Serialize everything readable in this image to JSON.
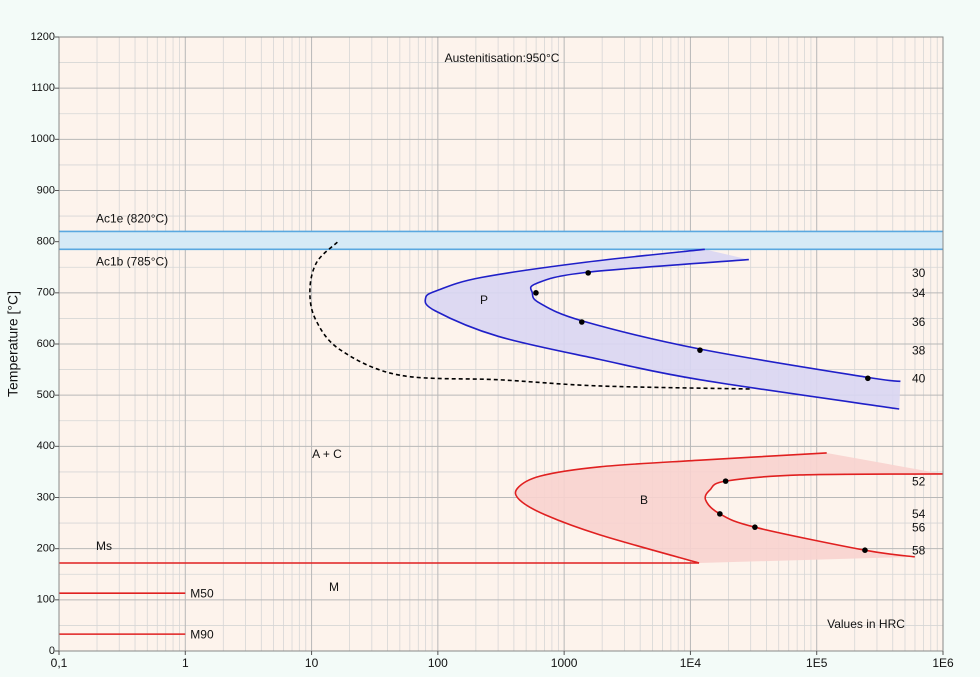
{
  "chart_data": {
    "type": "line",
    "title": "Austenitisation:950°C",
    "y_label": "Temperature [°C]",
    "log_x": true,
    "grid": true,
    "xlim": [
      0.1,
      1000000
    ],
    "xticks": [
      {
        "value": 0.1,
        "label": "0,1"
      },
      1,
      10,
      100,
      1000,
      {
        "value": 10000,
        "label": "1E4"
      },
      {
        "value": 100000,
        "label": "1E5"
      },
      {
        "value": 1000000,
        "label": "1E6"
      }
    ],
    "ylim": [
      0,
      1200
    ],
    "yticks": [
      0,
      100,
      200,
      300,
      400,
      500,
      600,
      700,
      800,
      900,
      1000,
      1100,
      1200
    ],
    "hlines": [
      {
        "label": "Ac1e (820°C)",
        "value": 820
      },
      {
        "label": "Ac1b (785°C)",
        "value": 785
      }
    ],
    "hline_color": "#5aa8e0",
    "hline_band_color": "#d6eaf6",
    "series": [
      {
        "color": "#1f1fc8",
        "x": [
          13000,
          1500,
          220,
          100,
          80,
          95,
          300,
          1900,
          12000,
          450000
        ],
        "y": [
          785,
          760,
          730,
          705,
          690,
          665,
          615,
          570,
          530,
          473
        ]
      },
      {
        "color": "#1f1fc8",
        "x": [
          29000,
          1500,
          600,
          560,
          640,
          1400,
          12000,
          250000,
          460000
        ],
        "y": [
          765,
          740,
          718,
          700,
          680,
          645,
          590,
          535,
          527
        ]
      },
      {
        "color": "#000000",
        "dashed": true,
        "x": [
          16,
          11,
          9.7,
          10.8,
          17,
          50,
          310,
          1920,
          31000
        ],
        "y": [
          799,
          760,
          705,
          647,
          588,
          539,
          530,
          518,
          512
        ]
      },
      {
        "color": "#e02020",
        "x": [
          120000,
          11900,
          1920,
          650,
          427,
          445,
          710,
          1920,
          11700
        ],
        "y": [
          387,
          373,
          360,
          342,
          318,
          295,
          266,
          227,
          172
        ]
      },
      {
        "color": "#e02020",
        "x": [
          1000000,
          73600,
          19000,
          14300,
          13200,
          17100,
          32400,
          241000,
          598000
        ],
        "y": [
          346,
          344,
          332,
          315,
          295,
          268,
          242,
          197,
          184
        ]
      },
      {
        "name": "Ms",
        "color": "#e02020",
        "x": [
          0.1,
          11700
        ],
        "y": [
          172,
          172
        ]
      },
      {
        "name": "M50",
        "color": "#e02020",
        "x": [
          0.1,
          1
        ],
        "y": [
          113,
          113
        ]
      },
      {
        "name": "M90",
        "color": "#e02020",
        "x": [
          0.1,
          1
        ],
        "y": [
          33,
          33
        ]
      }
    ],
    "regions": [
      {
        "series": [
          0,
          1
        ],
        "color": "#d9d6f3"
      },
      {
        "series": [
          3,
          4
        ],
        "color": "#f8d3cf"
      }
    ],
    "hardness_points": [
      {
        "x": [
          1550,
          598,
          1380,
          11900,
          254000
        ],
        "y": [
          739,
          700,
          643,
          588,
          533
        ],
        "labels": [
          30,
          34,
          36,
          38,
          40
        ]
      },
      {
        "x": [
          19000,
          17100,
          32400,
          241000
        ],
        "y": [
          332,
          268,
          242,
          197
        ],
        "labels": [
          52,
          54,
          56,
          58
        ]
      }
    ],
    "annotations": [
      "P",
      "B",
      "A + C",
      "M",
      "Values in HRC"
    ]
  }
}
